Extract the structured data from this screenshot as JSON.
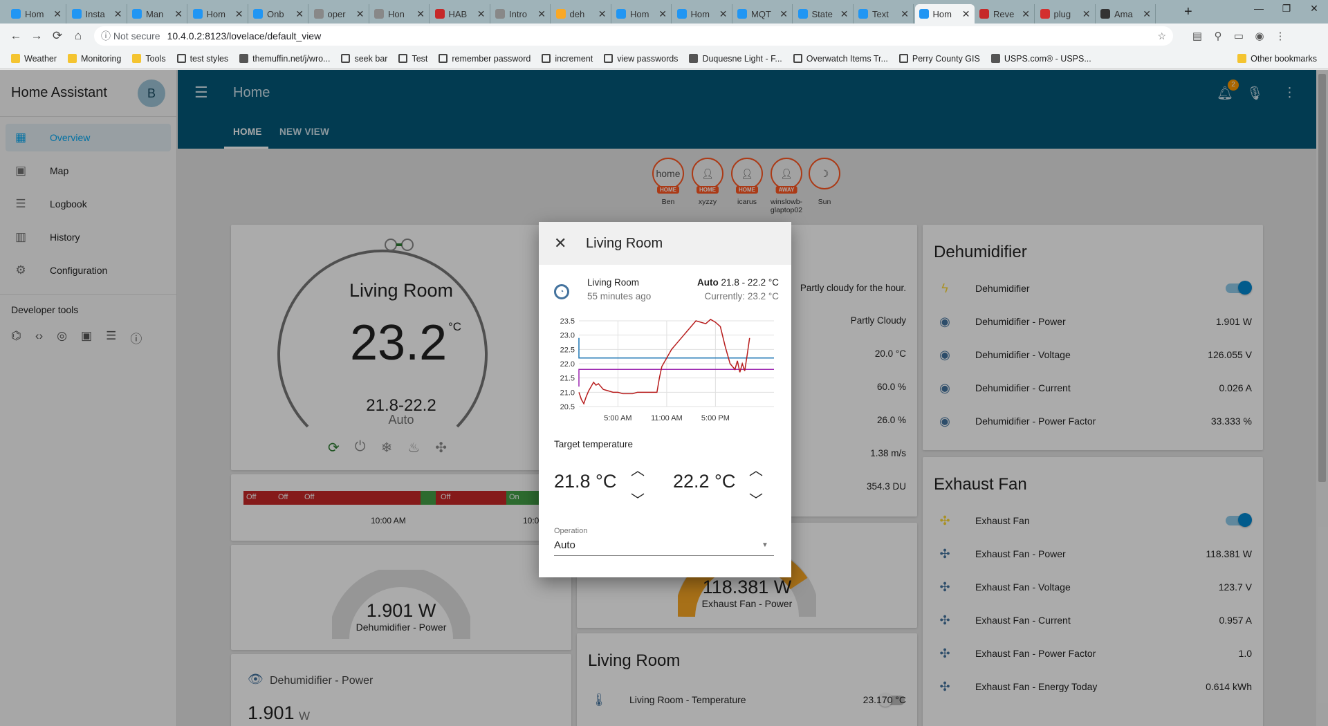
{
  "browser": {
    "tabs": [
      "Hom",
      "Insta",
      "Man",
      "Hom",
      "Onb",
      "oper",
      "Hon",
      "HAB",
      "Intro",
      "deh",
      "Hom",
      "Hom",
      "MQT",
      "State",
      "Text",
      "Hom",
      "Reve",
      "plug",
      "Ama"
    ],
    "address": {
      "security": "Not secure",
      "url": "10.4.0.2:8123/lovelace/default_view"
    },
    "bookmarks": [
      "Weather",
      "Monitoring",
      "Tools",
      "test styles",
      "themuffin.net/j/wro...",
      "seek bar",
      "Test",
      "remember password",
      "increment",
      "view passwords",
      "Duquesne Light - F...",
      "Overwatch Items Tr...",
      "Perry County GIS",
      "USPS.com® - USPS..."
    ],
    "other_bookmarks": "Other bookmarks"
  },
  "sidebar": {
    "title": "Home Assistant",
    "avatar": "B",
    "items": [
      {
        "label": "Overview",
        "icon": "grid-icon"
      },
      {
        "label": "Map",
        "icon": "map-icon"
      },
      {
        "label": "Logbook",
        "icon": "list-icon"
      },
      {
        "label": "History",
        "icon": "chart-icon"
      },
      {
        "label": "Configuration",
        "icon": "gear-icon"
      }
    ],
    "developer_tools": "Developer tools"
  },
  "header": {
    "title": "Home",
    "notification_count": "2",
    "tabs": [
      "HOME",
      "NEW VIEW"
    ]
  },
  "badges": [
    {
      "label": "home",
      "state": "HOME",
      "name": "Ben"
    },
    {
      "label": "",
      "state": "HOME",
      "name": "xyzzy"
    },
    {
      "label": "",
      "state": "HOME",
      "name": "icarus"
    },
    {
      "label": "",
      "state": "AWAY",
      "name": "winslowb-glaptop02"
    },
    {
      "label": "",
      "state": "",
      "name": "Sun"
    }
  ],
  "thermostat": {
    "name": "Living Room",
    "temperature": "23.2",
    "unit": "°C",
    "range": "21.8-22.2",
    "mode": "Auto"
  },
  "history_strip": {
    "segments": [
      "Off",
      "Off",
      "Off",
      "Off",
      "On"
    ],
    "time_label": "10:00 AM",
    "time_label_right": "10:0"
  },
  "gauge_dehumidifier": {
    "value": "1.901 W",
    "name": "Dehumidifier - Power"
  },
  "entity_card": {
    "name": "Dehumidifier - Power",
    "value": "1.901",
    "unit": "W"
  },
  "weather_partial": {
    "forecast": "Partly cloudy for the hour.",
    "rows": [
      "Partly Cloudy",
      "20.0 °C",
      "60.0 %",
      "26.0 %",
      "1.38 m/s",
      "354.3 DU"
    ]
  },
  "gauge_exhaust": {
    "value": "118.381 W",
    "name": "Exhaust Fan - Power"
  },
  "living_room_card": {
    "title": "Living Room",
    "rows": [
      {
        "name": "Living Room - Temperature",
        "value": "23.170 °C"
      }
    ]
  },
  "dehumidifier_card": {
    "title": "Dehumidifier",
    "rows": [
      {
        "name": "Dehumidifier",
        "value": ""
      },
      {
        "name": "Dehumidifier - Power",
        "value": "1.901 W"
      },
      {
        "name": "Dehumidifier - Voltage",
        "value": "126.055 V"
      },
      {
        "name": "Dehumidifier - Current",
        "value": "0.026 A"
      },
      {
        "name": "Dehumidifier - Power Factor",
        "value": "33.333 %"
      }
    ]
  },
  "exhaust_card": {
    "title": "Exhaust Fan",
    "rows": [
      {
        "name": "Exhaust Fan",
        "value": ""
      },
      {
        "name": "Exhaust Fan - Power",
        "value": "118.381 W"
      },
      {
        "name": "Exhaust Fan - Voltage",
        "value": "123.7 V"
      },
      {
        "name": "Exhaust Fan - Current",
        "value": "0.957 A"
      },
      {
        "name": "Exhaust Fan - Power Factor",
        "value": "1.0"
      },
      {
        "name": "Exhaust Fan - Energy Today",
        "value": "0.614 kWh"
      }
    ]
  },
  "dialog": {
    "title": "Living Room",
    "entity_name": "Living Room",
    "last_changed": "55 minutes ago",
    "state_mode": "Auto",
    "state_range": "21.8 - 22.2 °C",
    "current": "Currently: 23.2 °C",
    "target_label": "Target temperature",
    "target_low": "21.8 °C",
    "target_high": "22.2 °C",
    "operation_label": "Operation",
    "operation_value": "Auto"
  },
  "chart_data": {
    "type": "line",
    "title": "",
    "yticks": [
      20.5,
      21.0,
      21.5,
      22.0,
      22.5,
      23.0,
      23.5
    ],
    "xticks": [
      "5:00 AM",
      "11:00 AM",
      "5:00 PM"
    ],
    "ylim": [
      20.5,
      23.5
    ],
    "series": [
      {
        "name": "",
        "color": "#1f77b4",
        "x": [
          0,
          40
        ],
        "y": [
          22.2,
          22.2
        ],
        "start_y": 22.9
      },
      {
        "name": "",
        "color": "#9c27b0",
        "x": [
          0,
          40
        ],
        "y": [
          21.8,
          21.8
        ],
        "start_y": 21.2
      },
      {
        "name": "",
        "color": "#b71c1c",
        "x": [
          0,
          0.5,
          1,
          1.5,
          2,
          2.5,
          3,
          3.5,
          4,
          4.5,
          5,
          6,
          7,
          8,
          9,
          10,
          11,
          12,
          13,
          14,
          15,
          16,
          16.5,
          17,
          18,
          19,
          20,
          21,
          22,
          23,
          24,
          25,
          26,
          27,
          27.5,
          28,
          29,
          30,
          31,
          32,
          32.5,
          33,
          33.5,
          34,
          34.5,
          35
        ],
        "y": [
          21.0,
          20.75,
          20.6,
          20.85,
          21.05,
          21.2,
          21.35,
          21.25,
          21.3,
          21.2,
          21.1,
          21.05,
          21.0,
          21.0,
          20.95,
          20.95,
          20.95,
          21.0,
          21.0,
          21.0,
          21.0,
          21.0,
          21.5,
          21.9,
          22.2,
          22.5,
          22.7,
          22.9,
          23.1,
          23.3,
          23.5,
          23.45,
          23.4,
          23.55,
          23.5,
          23.45,
          23.3,
          22.6,
          22.0,
          21.8,
          22.1,
          21.7,
          22.0,
          21.75,
          22.3,
          22.9
        ]
      }
    ]
  }
}
